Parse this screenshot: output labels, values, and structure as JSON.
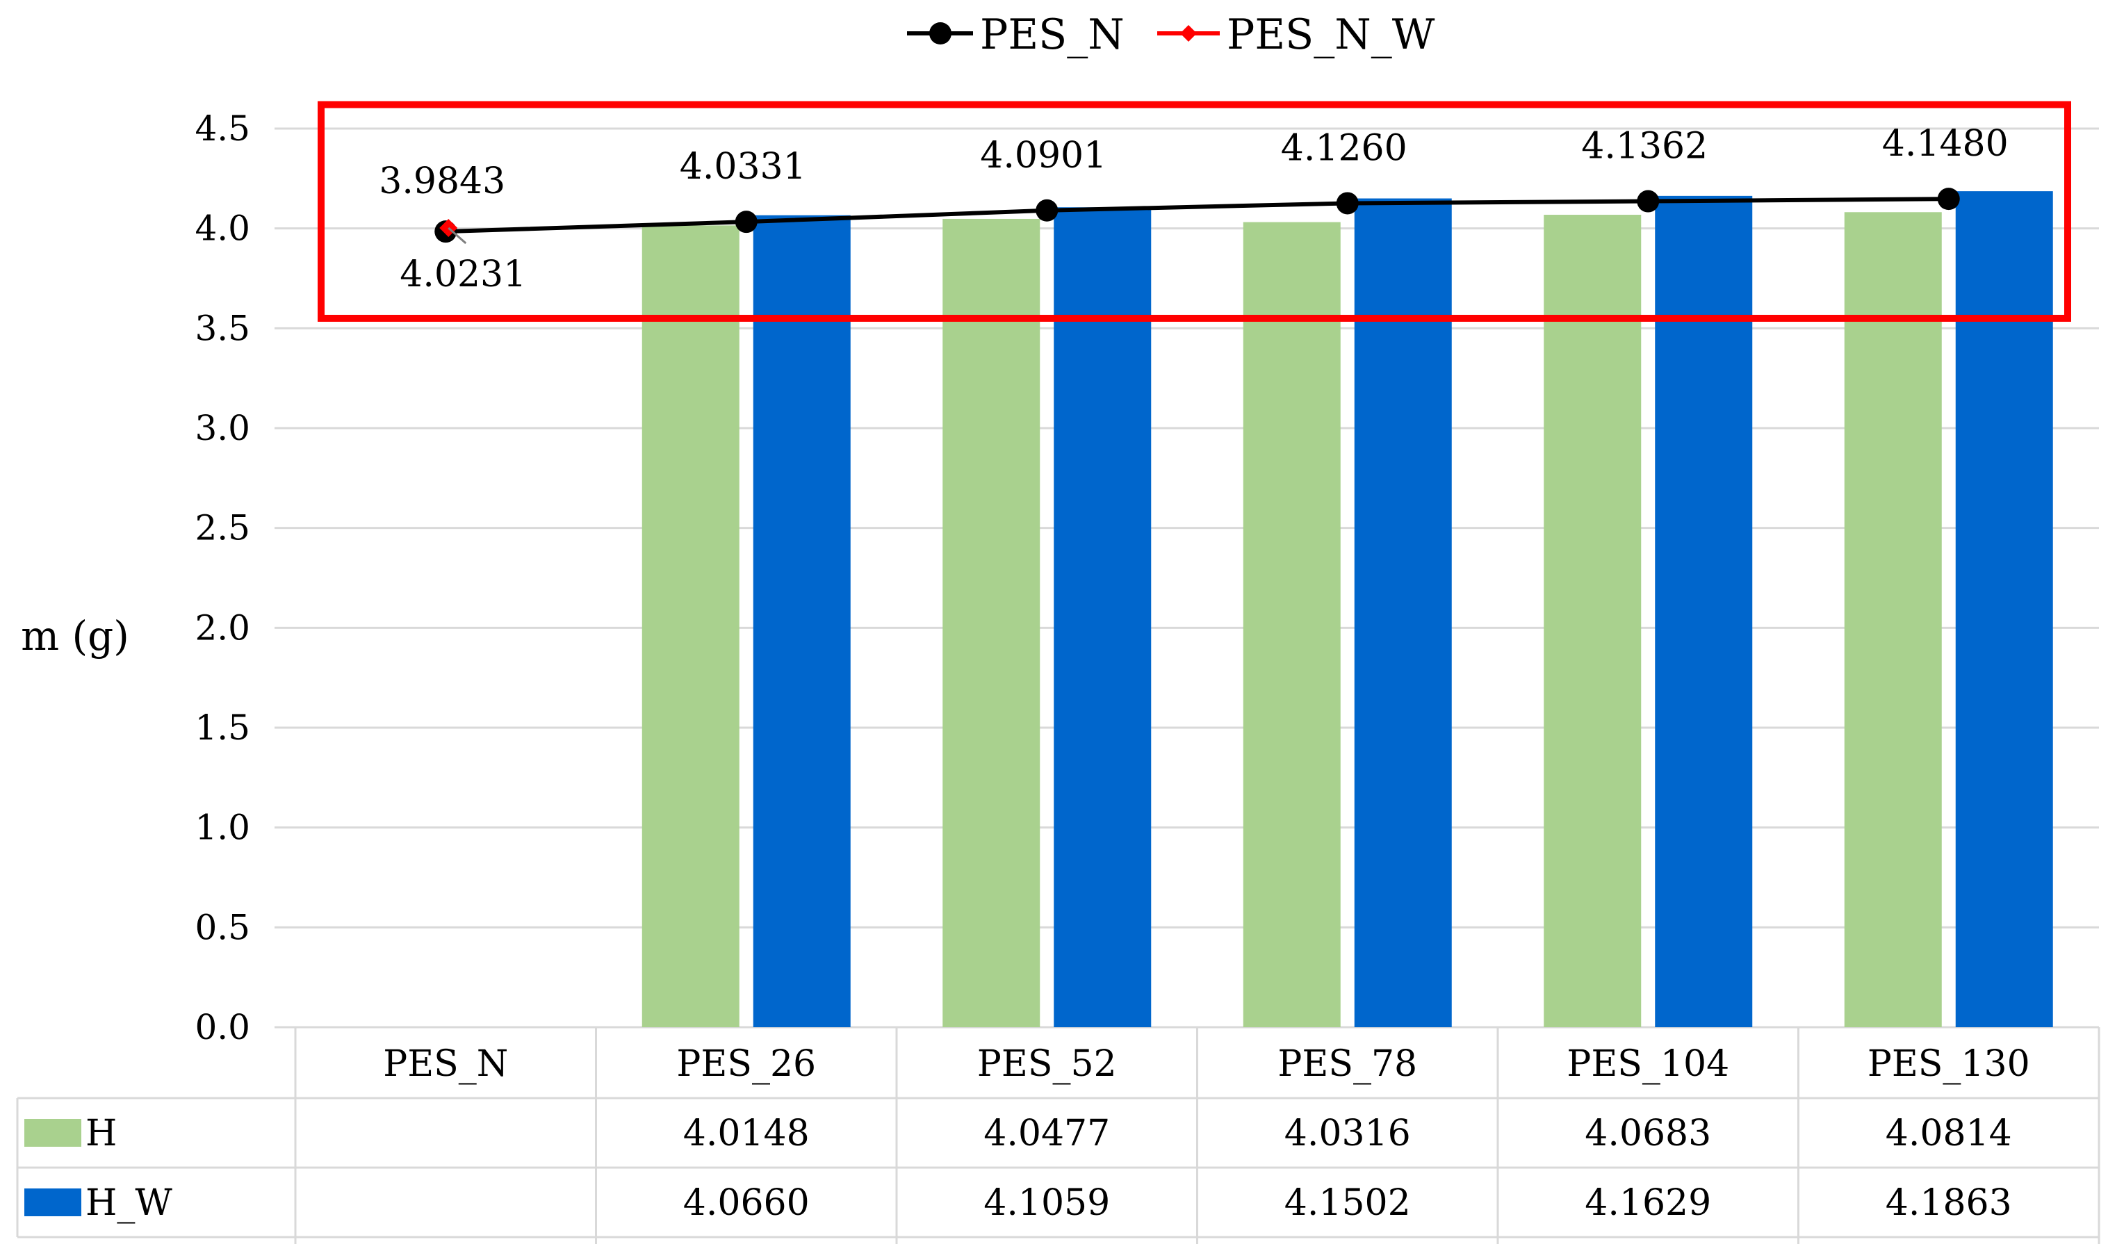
{
  "chart_data": {
    "type": "bar",
    "title": "",
    "xlabel": "",
    "ylabel": "m (g)",
    "ylim": [
      0,
      4.5
    ],
    "ytick_step": 0.5,
    "grid": true,
    "legend_position": "top-center",
    "categories": [
      "PES_N",
      "PES_26",
      "PES_52",
      "PES_78",
      "PES_104",
      "PES_130"
    ],
    "series": [
      {
        "name": "H",
        "kind": "bar",
        "color": "#a9d18e",
        "values": [
          null,
          4.0148,
          4.0477,
          4.0316,
          4.0683,
          4.0814
        ],
        "table_values": [
          "",
          "4.0148",
          "4.0477",
          "4.0316",
          "4.0683",
          "4.0814"
        ]
      },
      {
        "name": "H_W",
        "kind": "bar",
        "color": "#0066cc",
        "values": [
          null,
          4.066,
          4.1059,
          4.1502,
          4.1629,
          4.1863
        ],
        "table_values": [
          "",
          "4.0660",
          "4.1059",
          "4.1502",
          "4.1629",
          "4.1863"
        ]
      },
      {
        "name": "PES_N",
        "kind": "line",
        "color": "#000000",
        "marker": "circle",
        "values": [
          3.9843,
          4.0331,
          4.0901,
          4.126,
          4.1362,
          4.148
        ],
        "labels": [
          "3.9843",
          "4.0331",
          "4.0901",
          "4.1260",
          "4.1362",
          "4.1480"
        ]
      },
      {
        "name": "PES_N_W",
        "kind": "point",
        "color": "#ff0000",
        "marker": "diamond",
        "values": [
          4.0231,
          null,
          null,
          null,
          null,
          null
        ],
        "labels": [
          "4.0231",
          "",
          "",
          "",
          "",
          ""
        ]
      }
    ],
    "annotations": [
      {
        "type": "highlight-box",
        "color": "#ff0000",
        "y_from": 3.55,
        "y_to": 4.62,
        "from_category": "PES_N",
        "to_category": "PES_130"
      }
    ]
  }
}
